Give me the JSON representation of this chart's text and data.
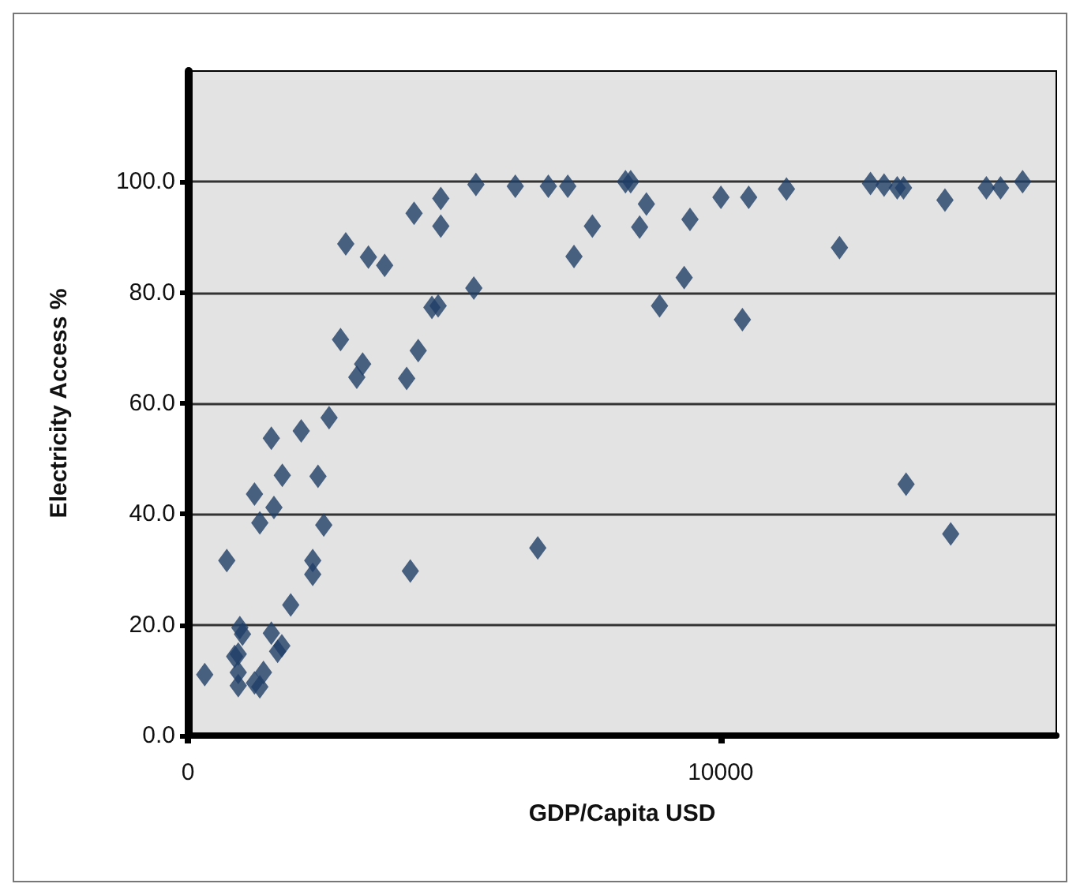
{
  "chart_data": {
    "type": "scatter",
    "xlabel": "GDP/Capita USD",
    "ylabel": "Electricity Access %",
    "xlim": [
      0,
      16300
    ],
    "xticks": [
      0,
      10000
    ],
    "ylim": [
      0,
      120
    ],
    "yticks": [
      {
        "value": 0,
        "label": "0.0"
      },
      {
        "value": 20,
        "label": "20.0"
      },
      {
        "value": 40,
        "label": "40.0"
      },
      {
        "value": 60,
        "label": "60.0"
      },
      {
        "value": 80,
        "label": "80.0"
      },
      {
        "value": 100,
        "label": "100.0"
      }
    ],
    "grid": "y",
    "marker": "diamond",
    "series": [
      {
        "color": "#1f3f66",
        "x": [
          316,
          730,
          975,
          1025,
          877,
          945,
          945,
          945,
          1250,
          1350,
          1418,
          1250,
          1350,
          1566,
          1615,
          1566,
          1684,
          1763,
          1772,
          1930,
          2127,
          2343,
          2343,
          2442,
          2550,
          2650,
          2865,
          2963,
          3170,
          3280,
          3388,
          3693,
          4106,
          4175,
          4245,
          4323,
          4580,
          4697,
          4747,
          4747,
          5367,
          5406,
          6145,
          6567,
          6765,
          7130,
          7247,
          7592,
          8213,
          8311,
          8606,
          8479,
          8853,
          9315,
          9424,
          10005,
          10526,
          10408,
          11235,
          12230,
          12812,
          13067,
          13314,
          13432,
          13480,
          14210,
          14318,
          14987,
          15253,
          15667
        ],
        "values": [
          11.0,
          31.6,
          19.5,
          18.3,
          14.3,
          14.7,
          11.4,
          9.0,
          9.5,
          8.8,
          11.4,
          43.6,
          38.4,
          53.7,
          41.2,
          18.5,
          15.2,
          16.2,
          47.0,
          23.6,
          55.0,
          31.6,
          29.1,
          46.8,
          38.0,
          57.4,
          71.5,
          88.8,
          64.7,
          67.1,
          86.4,
          84.9,
          64.5,
          29.7,
          94.3,
          69.5,
          77.3,
          77.6,
          97.0,
          92.0,
          80.8,
          99.5,
          99.2,
          33.9,
          99.2,
          99.2,
          86.5,
          92.0,
          100.0,
          100.0,
          96.0,
          91.8,
          77.6,
          82.7,
          93.2,
          97.2,
          97.2,
          75.1,
          98.7,
          88.1,
          99.7,
          99.4,
          98.9,
          98.9,
          45.4,
          96.7,
          36.4,
          98.9,
          98.9,
          100.0
        ]
      }
    ]
  }
}
